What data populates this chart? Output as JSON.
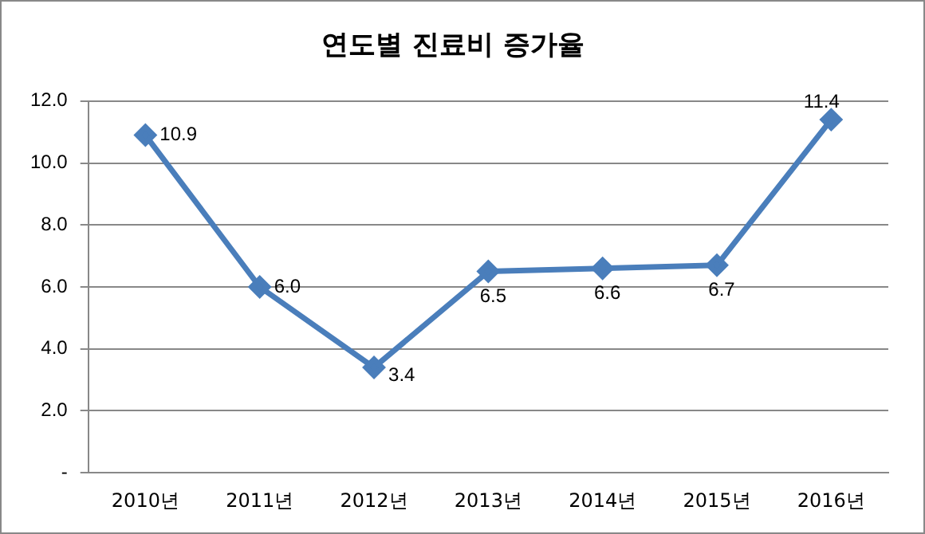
{
  "chart_data": {
    "type": "line",
    "title": "연도별 진료비 증가율",
    "categories": [
      "2010년",
      "2011년",
      "2012년",
      "2013년",
      "2014년",
      "2015년",
      "2016년"
    ],
    "series": [
      {
        "color": "#4a7ebb",
        "values": [
          10.9,
          6.0,
          3.4,
          6.5,
          6.6,
          6.7,
          11.4
        ],
        "value_labels": [
          "10.9",
          "6.0",
          "3.4",
          "6.5",
          "6.6",
          "6.7",
          "11.4"
        ]
      }
    ],
    "ylim": [
      0,
      12
    ],
    "yticks": [
      {
        "value": 0,
        "label": "-"
      },
      {
        "value": 2,
        "label": "2.0"
      },
      {
        "value": 4,
        "label": "4.0"
      },
      {
        "value": 6,
        "label": "6.0"
      },
      {
        "value": 8,
        "label": "8.0"
      },
      {
        "value": 10,
        "label": "10.0"
      },
      {
        "value": 12,
        "label": "12.0"
      }
    ],
    "grid": "y",
    "legend": false,
    "marker": "diamond",
    "line_style": "solid"
  }
}
